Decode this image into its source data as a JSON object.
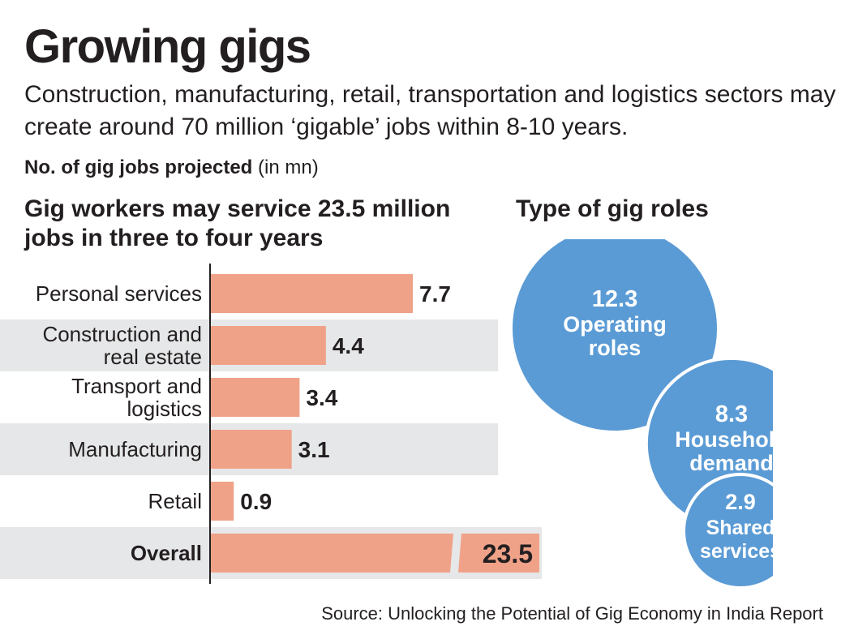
{
  "title": "Growing gigs",
  "subtitle": "Construction, manufacturing, retail, transportation and logistics sectors may create around 70 million ‘gigable’ jobs within 8-10 years.",
  "unit_label": {
    "bold": "No. of gig jobs projected",
    "normal": "(in mn)"
  },
  "source": "Source: Unlocking the Potential of Gig Economy in India Report",
  "colors": {
    "bar": "#f0a288",
    "band": "#e6e7e8",
    "bubble": "#5b9bd5",
    "bubble_stroke": "#ffffff",
    "text": "#231f20"
  },
  "chart_data": [
    {
      "type": "bar",
      "orientation": "horizontal",
      "title": "Gig workers may service 23.5 million jobs in three to four years",
      "categories": [
        "Personal services",
        "Construction and real estate",
        "Transport and logistics",
        "Manufacturing",
        "Retail",
        "Overall"
      ],
      "category_lines": [
        [
          "Personal services"
        ],
        [
          "Construction and",
          "real estate"
        ],
        [
          "Transport and",
          "logistics"
        ],
        [
          "Manufacturing"
        ],
        [
          "Retail"
        ],
        [
          "Overall"
        ]
      ],
      "values": [
        7.7,
        4.4,
        3.4,
        3.1,
        0.9,
        23.5
      ],
      "value_labels": [
        "7.7",
        "4.4",
        "3.4",
        "3.1",
        "0.9",
        "23.5"
      ],
      "axis_break_on": "Overall",
      "banded_rows": [
        "Construction and real estate",
        "Manufacturing",
        "Overall"
      ],
      "xlabel": "",
      "ylabel": ""
    },
    {
      "type": "bubble",
      "title": "Type of gig roles",
      "items": [
        {
          "value": 12.3,
          "label": "12.3",
          "name_lines": [
            "Operating",
            "roles"
          ]
        },
        {
          "value": 8.3,
          "label": "8.3",
          "name_lines": [
            "Household",
            "demand"
          ]
        },
        {
          "value": 2.9,
          "label": "2.9",
          "name_lines": [
            "Shared",
            "services"
          ]
        }
      ]
    }
  ]
}
